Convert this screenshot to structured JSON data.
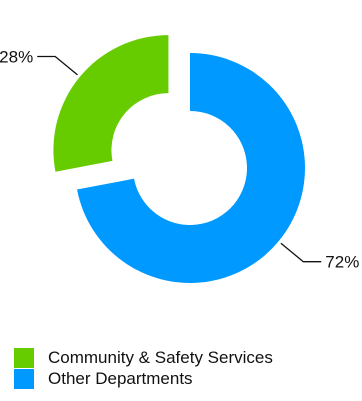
{
  "chart_data": {
    "type": "pie",
    "variant": "donut",
    "title": "",
    "slices": [
      {
        "name": "Community & Safety Services",
        "value": 28,
        "label": "28%",
        "color": "#66cc00",
        "exploded": true
      },
      {
        "name": "Other Departments",
        "value": 72,
        "label": "72%",
        "color": "#0099ff",
        "exploded": false
      }
    ],
    "legend_position": "bottom-left"
  },
  "legend": {
    "items": [
      {
        "label": "Community & Safety Services",
        "color": "#66cc00"
      },
      {
        "label": "Other Departments",
        "color": "#0099ff"
      }
    ]
  }
}
